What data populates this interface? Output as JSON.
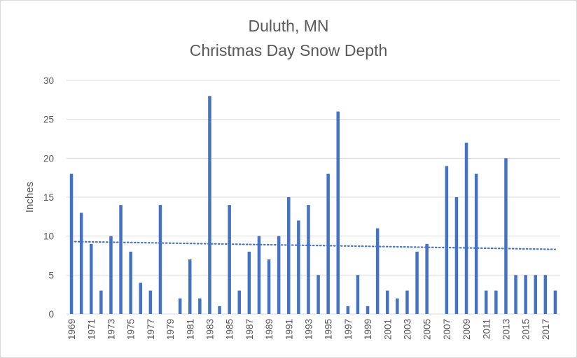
{
  "chart_data": {
    "type": "bar",
    "title": "Duluth, MN",
    "subtitle": "Christmas Day Snow Depth",
    "ylabel": "Inches",
    "xlabel": "",
    "ylim": [
      0,
      30
    ],
    "yticks": [
      0,
      5,
      10,
      15,
      20,
      25,
      30
    ],
    "grid": true,
    "trendline": {
      "style": "dotted",
      "start_value": 9.3,
      "end_value": 8.3
    },
    "colors": {
      "bar": "#4472c4",
      "trend": "#4472c4",
      "grid": "#d9d9d9",
      "text": "#595959"
    },
    "categories": [
      "1969",
      "1970",
      "1971",
      "1972",
      "1973",
      "1974",
      "1975",
      "1976",
      "1977",
      "1978",
      "1979",
      "1980",
      "1981",
      "1982",
      "1983",
      "1984",
      "1985",
      "1986",
      "1987",
      "1988",
      "1989",
      "1990",
      "1991",
      "1992",
      "1993",
      "1994",
      "1995",
      "1996",
      "1997",
      "1998",
      "1999",
      "2000",
      "2001",
      "2002",
      "2003",
      "2004",
      "2005",
      "2006",
      "2007",
      "2008",
      "2009",
      "2010",
      "2011",
      "2012",
      "2013",
      "2014",
      "2015",
      "2016",
      "2017",
      "2018"
    ],
    "tick_labels": [
      "1969",
      "1971",
      "1973",
      "1975",
      "1977",
      "1979",
      "1981",
      "1983",
      "1985",
      "1987",
      "1989",
      "1991",
      "1993",
      "1995",
      "1997",
      "1999",
      "2001",
      "2003",
      "2005",
      "2007",
      "2009",
      "2011",
      "2013",
      "2015",
      "2017"
    ],
    "values": [
      18,
      13,
      9,
      3,
      10,
      14,
      8,
      4,
      3,
      14,
      0,
      2,
      7,
      2,
      28,
      1,
      14,
      3,
      8,
      10,
      7,
      10,
      15,
      12,
      14,
      5,
      18,
      26,
      1,
      5,
      1,
      11,
      3,
      2,
      3,
      8,
      9,
      0,
      19,
      15,
      22,
      18,
      3,
      3,
      20,
      5,
      5,
      5,
      5,
      3
    ]
  }
}
